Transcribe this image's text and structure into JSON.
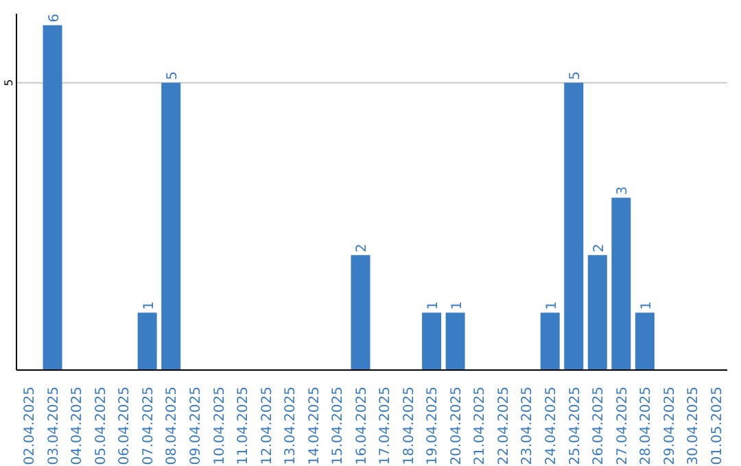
{
  "chart_data": {
    "type": "bar",
    "categories": [
      "02.04.2025",
      "03.04.2025",
      "04.04.2025",
      "05.04.2025",
      "06.04.2025",
      "07.04.2025",
      "08.04.2025",
      "09.04.2025",
      "10.04.2025",
      "11.04.2025",
      "12.04.2025",
      "13.04.2025",
      "14.04.2025",
      "15.04.2025",
      "16.04.2025",
      "17.04.2025",
      "18.04.2025",
      "19.04.2025",
      "20.04.2025",
      "21.04.2025",
      "22.04.2025",
      "23.04.2025",
      "24.04.2025",
      "25.04.2025",
      "26.04.2025",
      "27.04.2025",
      "28.04.2025",
      "29.04.2025",
      "30.04.2025",
      "01.05.2025"
    ],
    "values": [
      0,
      6,
      0,
      0,
      0,
      1,
      5,
      0,
      0,
      0,
      0,
      0,
      0,
      0,
      2,
      0,
      0,
      1,
      1,
      0,
      0,
      0,
      1,
      5,
      2,
      3,
      1,
      0,
      0,
      0
    ],
    "value_labels": [
      null,
      "6",
      null,
      null,
      null,
      "1",
      "5",
      null,
      null,
      null,
      null,
      null,
      null,
      null,
      "2",
      null,
      null,
      "1",
      "1",
      null,
      null,
      null,
      "1",
      "5",
      "2",
      "3",
      "1",
      null,
      null,
      null
    ],
    "color": "#3a7dc4",
    "ylim": [
      0,
      6.2
    ],
    "yticks": [
      5
    ],
    "grid": "y"
  }
}
